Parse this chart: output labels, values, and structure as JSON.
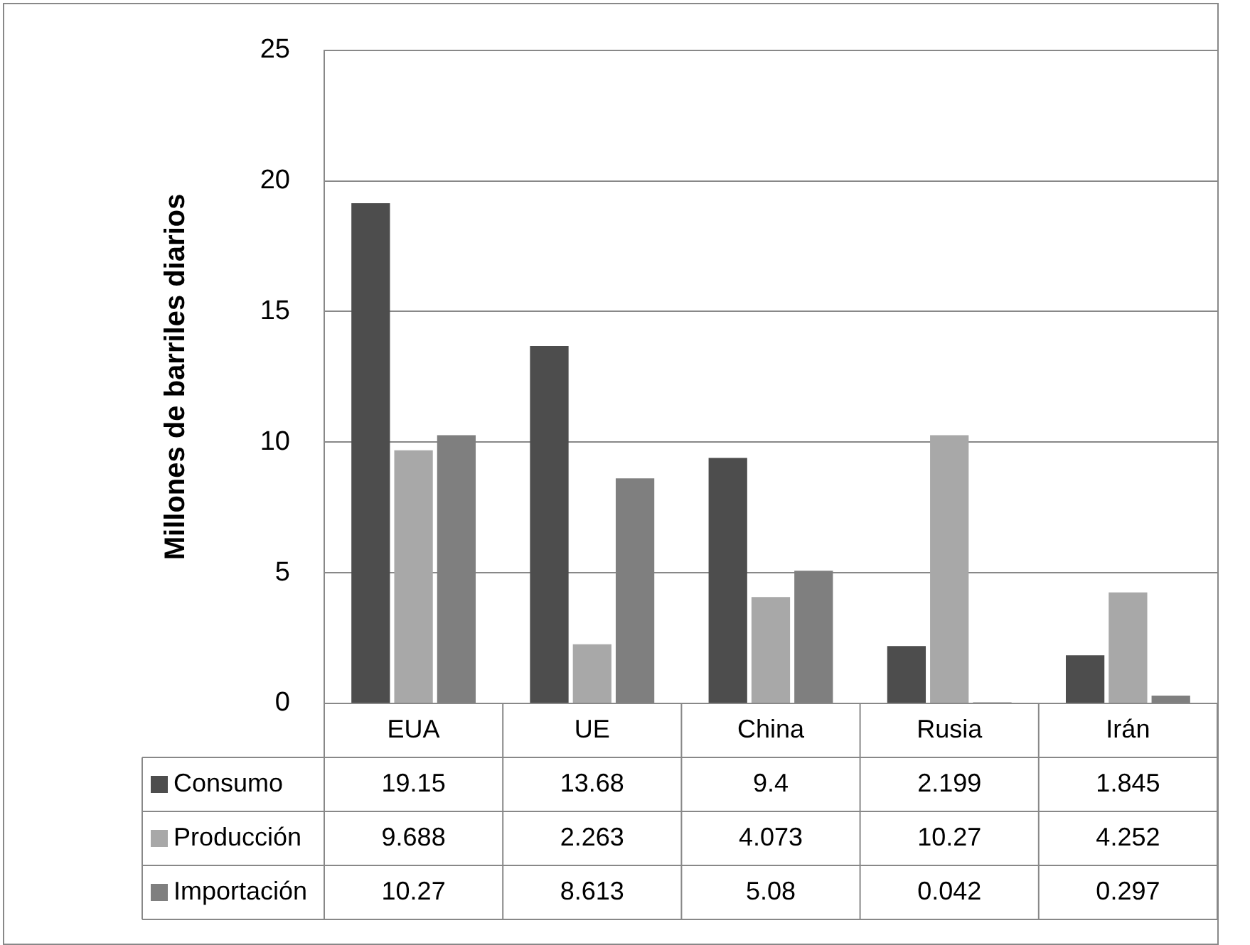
{
  "chart_data": {
    "type": "bar",
    "ylabel": "Millones de barriles diarios",
    "categories": [
      "EUA",
      "UE",
      "China",
      "Rusia",
      "Irán"
    ],
    "series": [
      {
        "name": "Consumo",
        "color": "#4d4d4d",
        "values": [
          19.15,
          13.68,
          9.4,
          2.199,
          1.845
        ]
      },
      {
        "name": "Producción",
        "color": "#a8a8a8",
        "values": [
          9.688,
          2.263,
          4.073,
          10.27,
          4.252
        ]
      },
      {
        "name": "Importación",
        "color": "#7f7f7f",
        "values": [
          10.27,
          8.613,
          5.08,
          0.042,
          0.297
        ]
      }
    ],
    "ylim": [
      0,
      25
    ],
    "yticks": [
      0,
      5,
      10,
      15,
      20,
      25
    ],
    "grid": "y",
    "legend": "bottom left",
    "data_labels": true
  }
}
